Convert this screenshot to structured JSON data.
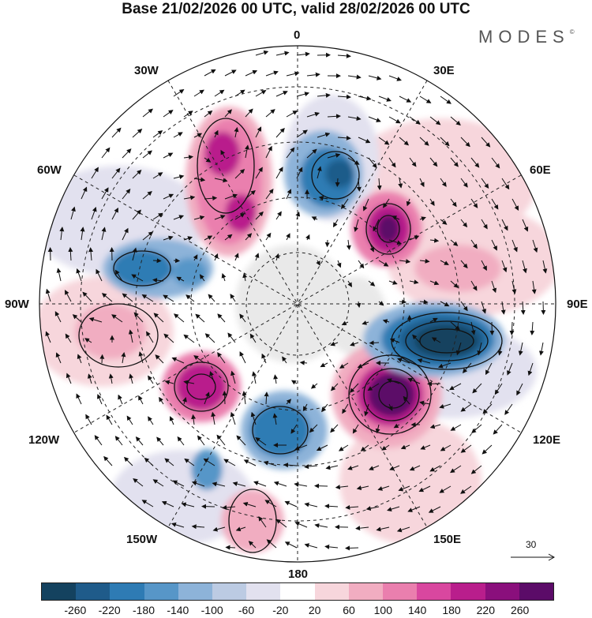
{
  "title": "Base 21/02/2026 00 UTC, valid 28/02/2026 00 UTC",
  "brand": {
    "name": "MODES",
    "mark": "©"
  },
  "map_labels": {
    "top": "0",
    "bottom": "180",
    "left": "90W",
    "right": "90E",
    "upper_left_1": "30W",
    "upper_left_2": "60W",
    "upper_right_1": "30E",
    "upper_right_2": "60E",
    "lower_left_1": "120W",
    "lower_left_2": "150W",
    "lower_right_1": "120E",
    "lower_right_2": "150E"
  },
  "reference_vector": {
    "value": "30"
  },
  "colorbar": {
    "ticks": [
      "-260",
      "-220",
      "-180",
      "-140",
      "-100",
      "-60",
      "-20",
      "20",
      "60",
      "100",
      "140",
      "180",
      "220",
      "260"
    ],
    "colors": [
      "#14425f",
      "#1f5b8a",
      "#2e7bb4",
      "#5796c8",
      "#8db3d9",
      "#bccbe3",
      "#e2e1ef",
      "#ffffff",
      "#f7d6dc",
      "#f1adc1",
      "#ea7fae",
      "#d9479f",
      "#b91e8c",
      "#8a0f7c",
      "#5b0b68"
    ]
  },
  "anomaly_blobs": [
    {
      "sign": "positive",
      "level": 260
    },
    {
      "sign": "positive",
      "level": 220
    },
    {
      "sign": "positive",
      "level": 220
    },
    {
      "sign": "positive",
      "level": 200
    },
    {
      "sign": "positive",
      "level": 140
    },
    {
      "sign": "positive",
      "level": 120
    },
    {
      "sign": "negative",
      "level": -260
    },
    {
      "sign": "negative",
      "level": -180
    },
    {
      "sign": "negative",
      "level": -180
    },
    {
      "sign": "negative",
      "level": -160
    },
    {
      "sign": "negative",
      "level": -140
    },
    {
      "sign": "negative",
      "level": -100
    }
  ]
}
